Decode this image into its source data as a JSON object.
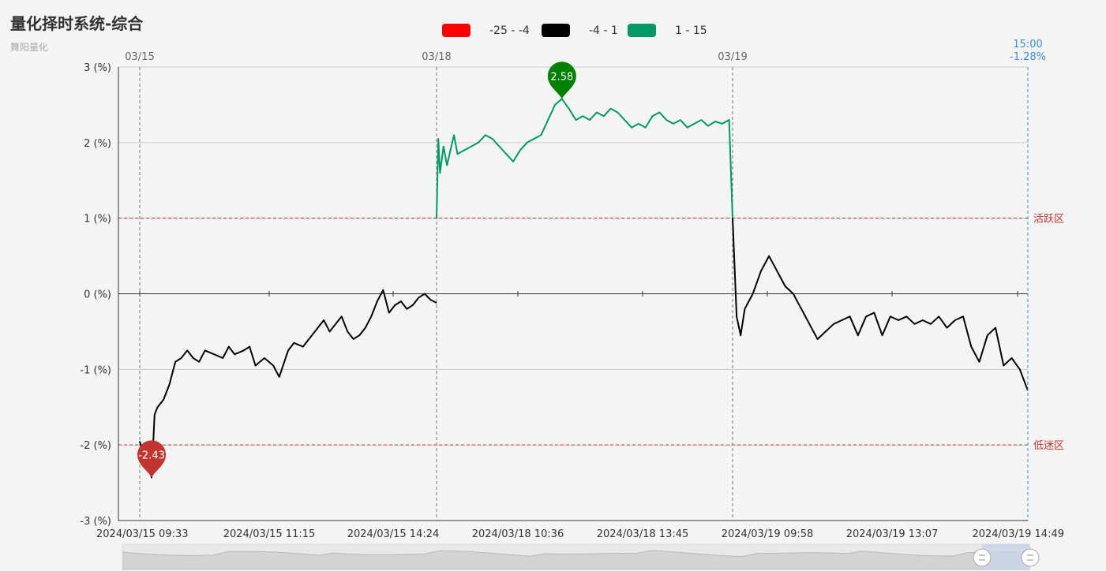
{
  "title": "量化择时系统-综合",
  "subtitle": "舞阳量化",
  "legend": [
    {
      "label": "-25 - -4",
      "color": "#ff0000"
    },
    {
      "label": "-4 - 1",
      "color": "#000000"
    },
    {
      "label": "1 - 15",
      "color": "#009966"
    }
  ],
  "cursor": {
    "time": "15:00",
    "value": "-1.28%"
  },
  "zones": [
    {
      "label": "活跃区",
      "value": 1,
      "color": "#c23531"
    },
    {
      "label": "低迷区",
      "value": -2,
      "color": "#c23531"
    }
  ],
  "chart_data": {
    "type": "line",
    "y_axis": {
      "min": -3,
      "max": 3,
      "ticks": [
        3,
        2,
        1,
        0,
        -1,
        -2,
        -3
      ],
      "unit_suffix": " (%)"
    },
    "x_labels": [
      "2024/03/15 09:33",
      "2024/03/15 11:15",
      "2024/03/15 14:24",
      "2024/03/18 10:36",
      "2024/03/18 13:45",
      "2024/03/19 09:58",
      "2024/03/19 13:07",
      "2024/03/19 14:49"
    ],
    "day_markers": [
      "03/15",
      "03/18",
      "03/19"
    ],
    "max_point": {
      "value": 2.58,
      "label": "2.58"
    },
    "min_point": {
      "value": -2.43,
      "label": "-2.43"
    },
    "segments": [
      {
        "day": "03/15",
        "color": "#000000",
        "points": [
          [
            0,
            -1.95
          ],
          [
            0.01,
            -2.1
          ],
          [
            0.02,
            -2.05
          ],
          [
            0.03,
            -2.2
          ],
          [
            0.04,
            -2.43
          ],
          [
            0.05,
            -1.6
          ],
          [
            0.06,
            -1.5
          ],
          [
            0.08,
            -1.4
          ],
          [
            0.1,
            -1.2
          ],
          [
            0.12,
            -0.9
          ],
          [
            0.14,
            -0.85
          ],
          [
            0.16,
            -0.75
          ],
          [
            0.18,
            -0.85
          ],
          [
            0.2,
            -0.9
          ],
          [
            0.22,
            -0.75
          ],
          [
            0.25,
            -0.8
          ],
          [
            0.28,
            -0.85
          ],
          [
            0.3,
            -0.7
          ],
          [
            0.32,
            -0.8
          ],
          [
            0.35,
            -0.75
          ],
          [
            0.37,
            -0.7
          ],
          [
            0.39,
            -0.95
          ],
          [
            0.42,
            -0.85
          ],
          [
            0.45,
            -0.95
          ],
          [
            0.47,
            -1.1
          ],
          [
            0.5,
            -0.75
          ],
          [
            0.52,
            -0.65
          ],
          [
            0.55,
            -0.7
          ],
          [
            0.57,
            -0.6
          ],
          [
            0.6,
            -0.45
          ],
          [
            0.62,
            -0.35
          ],
          [
            0.64,
            -0.5
          ],
          [
            0.66,
            -0.4
          ],
          [
            0.68,
            -0.3
          ],
          [
            0.7,
            -0.5
          ],
          [
            0.72,
            -0.6
          ],
          [
            0.74,
            -0.55
          ],
          [
            0.76,
            -0.45
          ],
          [
            0.78,
            -0.3
          ],
          [
            0.8,
            -0.1
          ],
          [
            0.82,
            0.05
          ],
          [
            0.84,
            -0.25
          ],
          [
            0.86,
            -0.15
          ],
          [
            0.88,
            -0.1
          ],
          [
            0.9,
            -0.2
          ],
          [
            0.92,
            -0.15
          ],
          [
            0.94,
            -0.05
          ],
          [
            0.96,
            0.0
          ],
          [
            0.98,
            -0.08
          ],
          [
            1.0,
            -0.12
          ]
        ]
      },
      {
        "day": "03/18",
        "color": "#009966",
        "points": [
          [
            1.0,
            1.0
          ],
          [
            1.005,
            2.05
          ],
          [
            1.01,
            1.6
          ],
          [
            1.02,
            1.95
          ],
          [
            1.03,
            1.7
          ],
          [
            1.04,
            1.9
          ],
          [
            1.05,
            2.1
          ],
          [
            1.06,
            1.85
          ],
          [
            1.08,
            1.9
          ],
          [
            1.1,
            1.95
          ],
          [
            1.12,
            2.0
          ],
          [
            1.14,
            2.1
          ],
          [
            1.16,
            2.05
          ],
          [
            1.18,
            1.95
          ],
          [
            1.2,
            1.85
          ],
          [
            1.22,
            1.75
          ],
          [
            1.24,
            1.9
          ],
          [
            1.26,
            2.0
          ],
          [
            1.28,
            2.05
          ],
          [
            1.3,
            2.1
          ],
          [
            1.32,
            2.3
          ],
          [
            1.34,
            2.5
          ],
          [
            1.36,
            2.58
          ],
          [
            1.38,
            2.45
          ],
          [
            1.4,
            2.3
          ],
          [
            1.42,
            2.35
          ],
          [
            1.44,
            2.3
          ],
          [
            1.46,
            2.4
          ],
          [
            1.48,
            2.35
          ],
          [
            1.5,
            2.45
          ],
          [
            1.52,
            2.4
          ],
          [
            1.54,
            2.3
          ],
          [
            1.56,
            2.2
          ],
          [
            1.58,
            2.25
          ],
          [
            1.6,
            2.2
          ],
          [
            1.62,
            2.35
          ],
          [
            1.64,
            2.4
          ],
          [
            1.66,
            2.3
          ],
          [
            1.68,
            2.25
          ],
          [
            1.7,
            2.3
          ],
          [
            1.72,
            2.2
          ],
          [
            1.74,
            2.25
          ],
          [
            1.76,
            2.3
          ],
          [
            1.78,
            2.22
          ],
          [
            1.8,
            2.28
          ],
          [
            1.82,
            2.25
          ],
          [
            1.84,
            2.3
          ],
          [
            1.85,
            1.0
          ]
        ]
      },
      {
        "day": "03/19",
        "color": "#000000",
        "points": [
          [
            1.85,
            1.0
          ],
          [
            1.86,
            -0.3
          ],
          [
            1.87,
            -0.55
          ],
          [
            1.88,
            -0.2
          ],
          [
            1.9,
            0.0
          ],
          [
            1.92,
            0.3
          ],
          [
            1.94,
            0.5
          ],
          [
            1.96,
            0.3
          ],
          [
            1.98,
            0.1
          ],
          [
            2.0,
            0.0
          ],
          [
            2.02,
            -0.2
          ],
          [
            2.04,
            -0.4
          ],
          [
            2.06,
            -0.6
          ],
          [
            2.08,
            -0.5
          ],
          [
            2.1,
            -0.4
          ],
          [
            2.12,
            -0.35
          ],
          [
            2.14,
            -0.3
          ],
          [
            2.16,
            -0.55
          ],
          [
            2.18,
            -0.3
          ],
          [
            2.2,
            -0.25
          ],
          [
            2.22,
            -0.55
          ],
          [
            2.24,
            -0.3
          ],
          [
            2.26,
            -0.35
          ],
          [
            2.28,
            -0.3
          ],
          [
            2.3,
            -0.4
          ],
          [
            2.32,
            -0.35
          ],
          [
            2.34,
            -0.4
          ],
          [
            2.36,
            -0.3
          ],
          [
            2.38,
            -0.45
          ],
          [
            2.4,
            -0.35
          ],
          [
            2.42,
            -0.3
          ],
          [
            2.44,
            -0.7
          ],
          [
            2.46,
            -0.9
          ],
          [
            2.48,
            -0.55
          ],
          [
            2.5,
            -0.45
          ],
          [
            2.52,
            -0.95
          ],
          [
            2.54,
            -0.85
          ],
          [
            2.56,
            -1.0
          ],
          [
            2.58,
            -1.28
          ]
        ]
      }
    ]
  }
}
